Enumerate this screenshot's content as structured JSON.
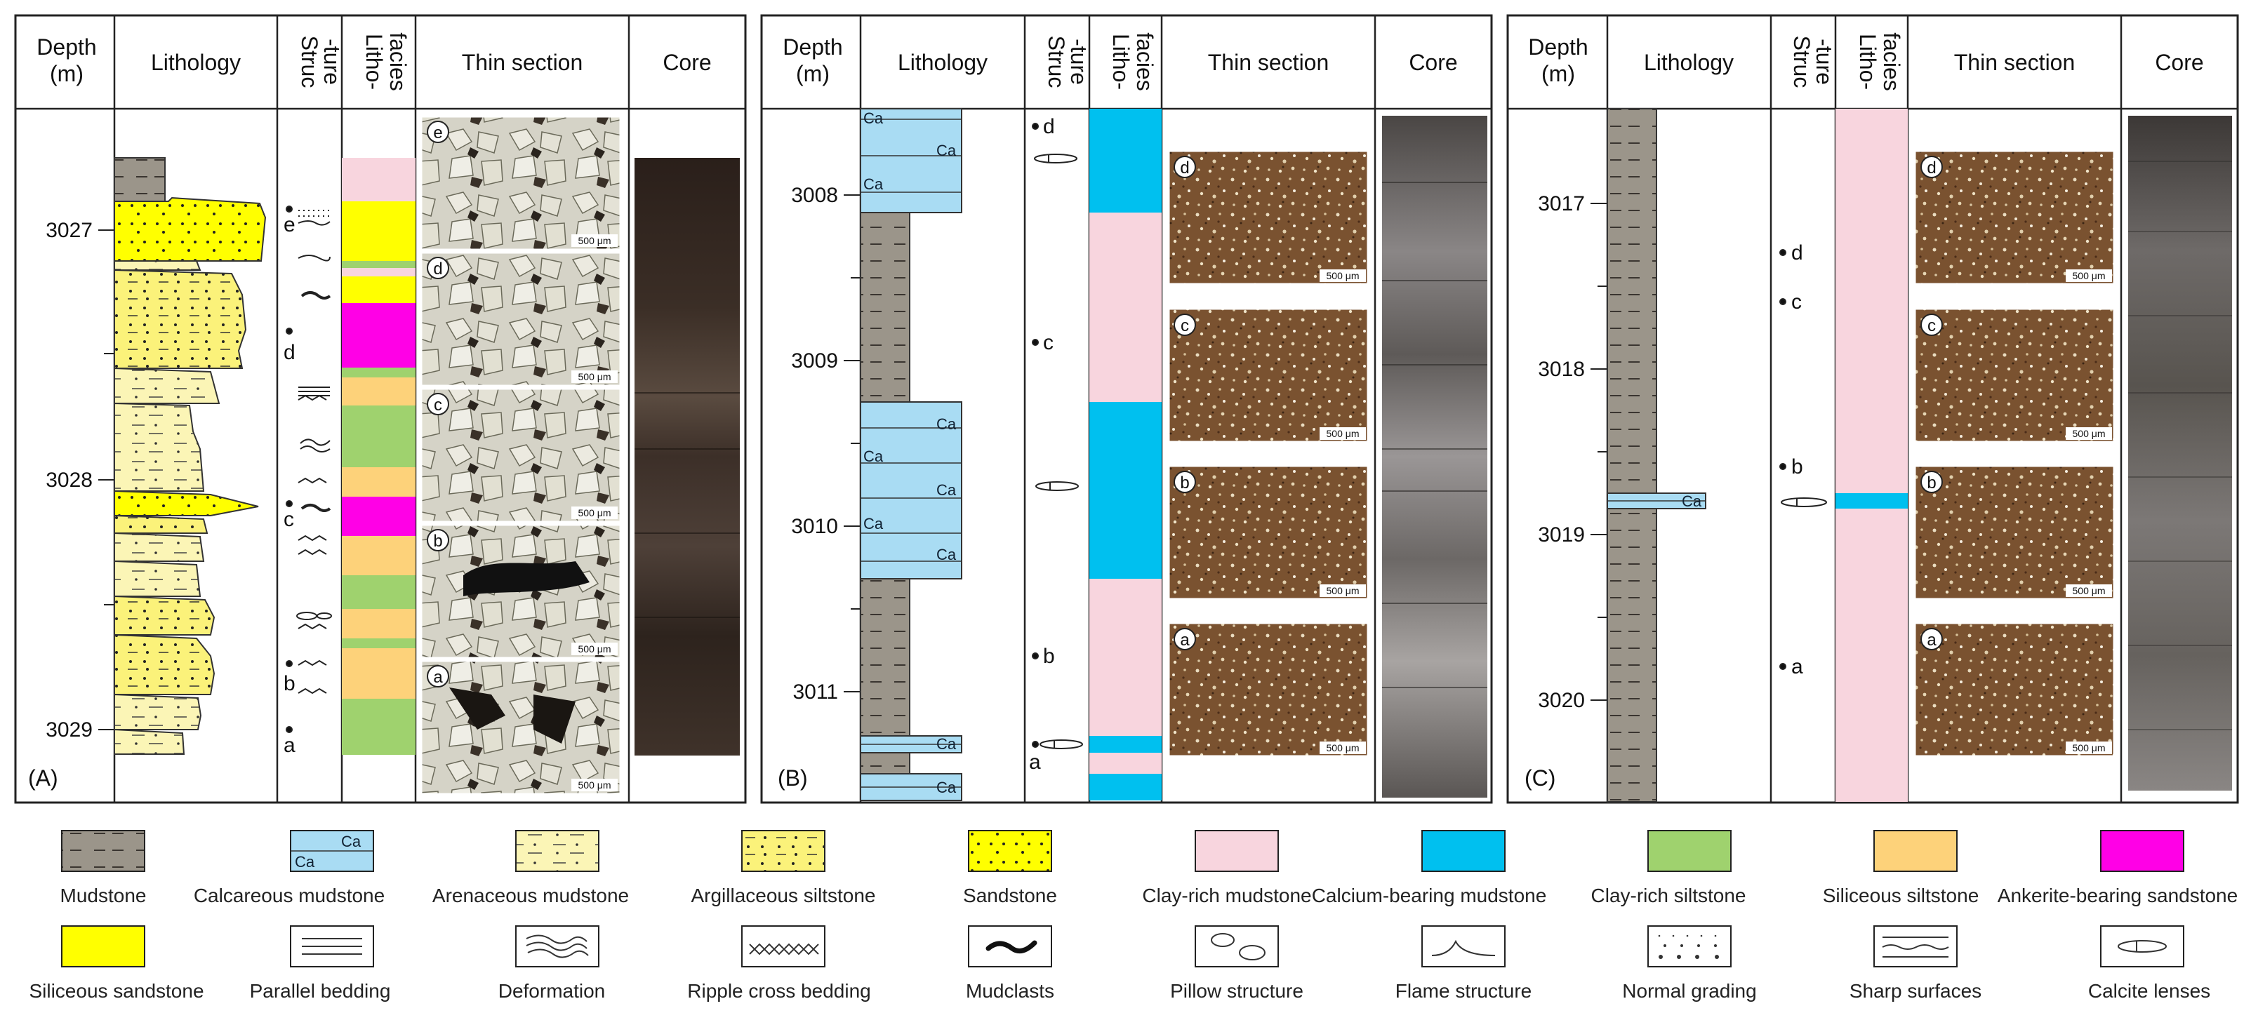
{
  "colors": {
    "mudstone": "#9b958a",
    "calcareous": "#a9dcf3",
    "arenaceous": "#fbf5b6",
    "argillaceous": "#fbf27a",
    "sandstone": "#ffff00",
    "clay_mud": "#f8d5de",
    "calcium_mud": "#00c0ef",
    "clay_silt": "#9fd26e",
    "siliceous_silt": "#fdd27a",
    "ankerite": "#ff00e6",
    "siliceous_sand": "#ffff00",
    "thin_light": "#d8d6c8",
    "thin_brown": "#7a4f2a",
    "core_dark": "#2c221c",
    "core_gray": "#7c7c80"
  },
  "headers": {
    "depth": [
      "Depth",
      "(m)"
    ],
    "lithology": "Lithology",
    "structure": [
      "Struc",
      "-ture"
    ],
    "lithofacies": [
      "Litho-",
      "facies"
    ],
    "thin_section": "Thin section",
    "core": "Core"
  },
  "panels": [
    {
      "label": "(A)",
      "depth_ticks": [
        "3027",
        "3028",
        "3029"
      ],
      "sample_labels": [
        "e",
        "d",
        "c",
        "b",
        "a"
      ],
      "scale_bar": "500 μm"
    },
    {
      "label": "(B)",
      "depth_ticks": [
        "3008",
        "3009",
        "3010",
        "3011"
      ],
      "sample_labels": [
        "d",
        "c",
        "b",
        "a"
      ],
      "scale_bar": "500 μm",
      "ca_label": "Ca"
    },
    {
      "label": "(C)",
      "depth_ticks": [
        "3017",
        "3018",
        "3019",
        "3020"
      ],
      "sample_labels": [
        "d",
        "c",
        "b",
        "a"
      ],
      "scale_bar": "500 μm",
      "ca_label": "Ca"
    }
  ],
  "legend": [
    {
      "label": "Mudstone",
      "icon": "mudstone-swatch"
    },
    {
      "label": "Calcareous mudstone",
      "icon": "calcareous-mudstone-swatch",
      "text": "Ca"
    },
    {
      "label": "Arenaceous mudstone",
      "icon": "arenaceous-mudstone-swatch"
    },
    {
      "label": "Argillaceous siltstone",
      "icon": "argillaceous-siltstone-swatch"
    },
    {
      "label": "Sandstone",
      "icon": "sandstone-swatch"
    },
    {
      "label": "Clay-rich mudstone",
      "icon": "clay-rich-mudstone-swatch"
    },
    {
      "label": "Calcium-bearing mudstone",
      "icon": "calcium-bearing-mudstone-swatch"
    },
    {
      "label": "Clay-rich siltstone",
      "icon": "clay-rich-siltstone-swatch"
    },
    {
      "label": "Siliceous siltstone",
      "icon": "siliceous-siltstone-swatch"
    },
    {
      "label": "Ankerite-bearing sandstone",
      "icon": "ankerite-bearing-sandstone-swatch"
    },
    {
      "label": "Siliceous sandstone",
      "icon": "siliceous-sandstone-swatch"
    },
    {
      "label": "Parallel bedding",
      "icon": "parallel-bedding-icon"
    },
    {
      "label": "Deformation",
      "icon": "deformation-icon"
    },
    {
      "label": "Ripple cross bedding",
      "icon": "ripple-cross-bedding-icon"
    },
    {
      "label": "Mudclasts",
      "icon": "mudclasts-icon"
    },
    {
      "label": "Pillow structure",
      "icon": "pillow-structure-icon"
    },
    {
      "label": "Flame structure",
      "icon": "flame-structure-icon"
    },
    {
      "label": "Normal grading",
      "icon": "normal-grading-icon"
    },
    {
      "label": "Sharp surfaces",
      "icon": "sharp-surfaces-icon"
    },
    {
      "label": "Calcite lenses",
      "icon": "calcite-lenses-icon"
    }
  ]
}
